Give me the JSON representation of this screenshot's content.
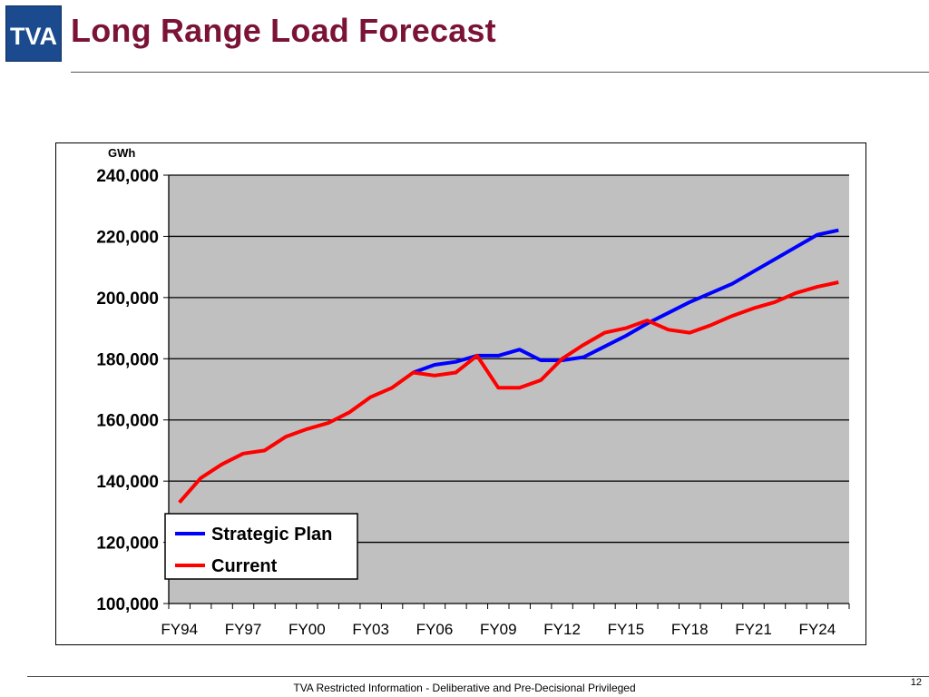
{
  "slide": {
    "logo_text": "TVA",
    "title": "Long Range Load Forecast",
    "footer": "TVA Restricted Information - Deliberative and Pre-Decisional Privileged",
    "page_number": "12"
  },
  "colors": {
    "title": "#7a1335",
    "logo_bg": "#1b4a8e",
    "plot_bg": "#c0c0c0",
    "strategic_plan": "#0000ff",
    "current": "#ff0000"
  },
  "chart_data": {
    "type": "line",
    "title": "",
    "unit_label": "GWh",
    "xlabel": "",
    "ylabel": "GWh",
    "ylim": [
      100000,
      240000
    ],
    "yticks": [
      100000,
      120000,
      140000,
      160000,
      180000,
      200000,
      220000,
      240000
    ],
    "ytick_labels": [
      "100,000",
      "120,000",
      "140,000",
      "160,000",
      "180,000",
      "200,000",
      "220,000",
      "240,000"
    ],
    "x": [
      "FY94",
      "FY95",
      "FY96",
      "FY97",
      "FY98",
      "FY99",
      "FY00",
      "FY01",
      "FY02",
      "FY03",
      "FY04",
      "FY05",
      "FY06",
      "FY07",
      "FY08",
      "FY09",
      "FY10",
      "FY11",
      "FY12",
      "FY13",
      "FY14",
      "FY15",
      "FY16",
      "FY17",
      "FY18",
      "FY19",
      "FY20",
      "FY21",
      "FY22",
      "FY23",
      "FY24",
      "FY25"
    ],
    "xtick_labels": [
      "FY94",
      "FY97",
      "FY00",
      "FY03",
      "FY06",
      "FY09",
      "FY12",
      "FY15",
      "FY18",
      "FY21",
      "FY24"
    ],
    "grid": "horizontal",
    "legend": "lower-left",
    "series": [
      {
        "name": "Strategic Plan",
        "color": "#0000ff",
        "values": [
          null,
          null,
          null,
          null,
          null,
          null,
          null,
          null,
          null,
          null,
          null,
          175500,
          178000,
          179000,
          181000,
          181000,
          183000,
          179500,
          179500,
          180500,
          184000,
          187500,
          191500,
          195000,
          198500,
          201500,
          204500,
          208500,
          212500,
          216500,
          220500,
          222000
        ]
      },
      {
        "name": "Current",
        "color": "#ff0000",
        "values": [
          133000,
          141000,
          145500,
          149000,
          150000,
          154500,
          157000,
          159000,
          162500,
          167500,
          170500,
          175500,
          174500,
          175500,
          181000,
          170500,
          170500,
          173000,
          180000,
          184500,
          188500,
          190000,
          192500,
          189500,
          188500,
          191000,
          194000,
          196500,
          198500,
          201500,
          203500,
          205000
        ]
      }
    ]
  }
}
